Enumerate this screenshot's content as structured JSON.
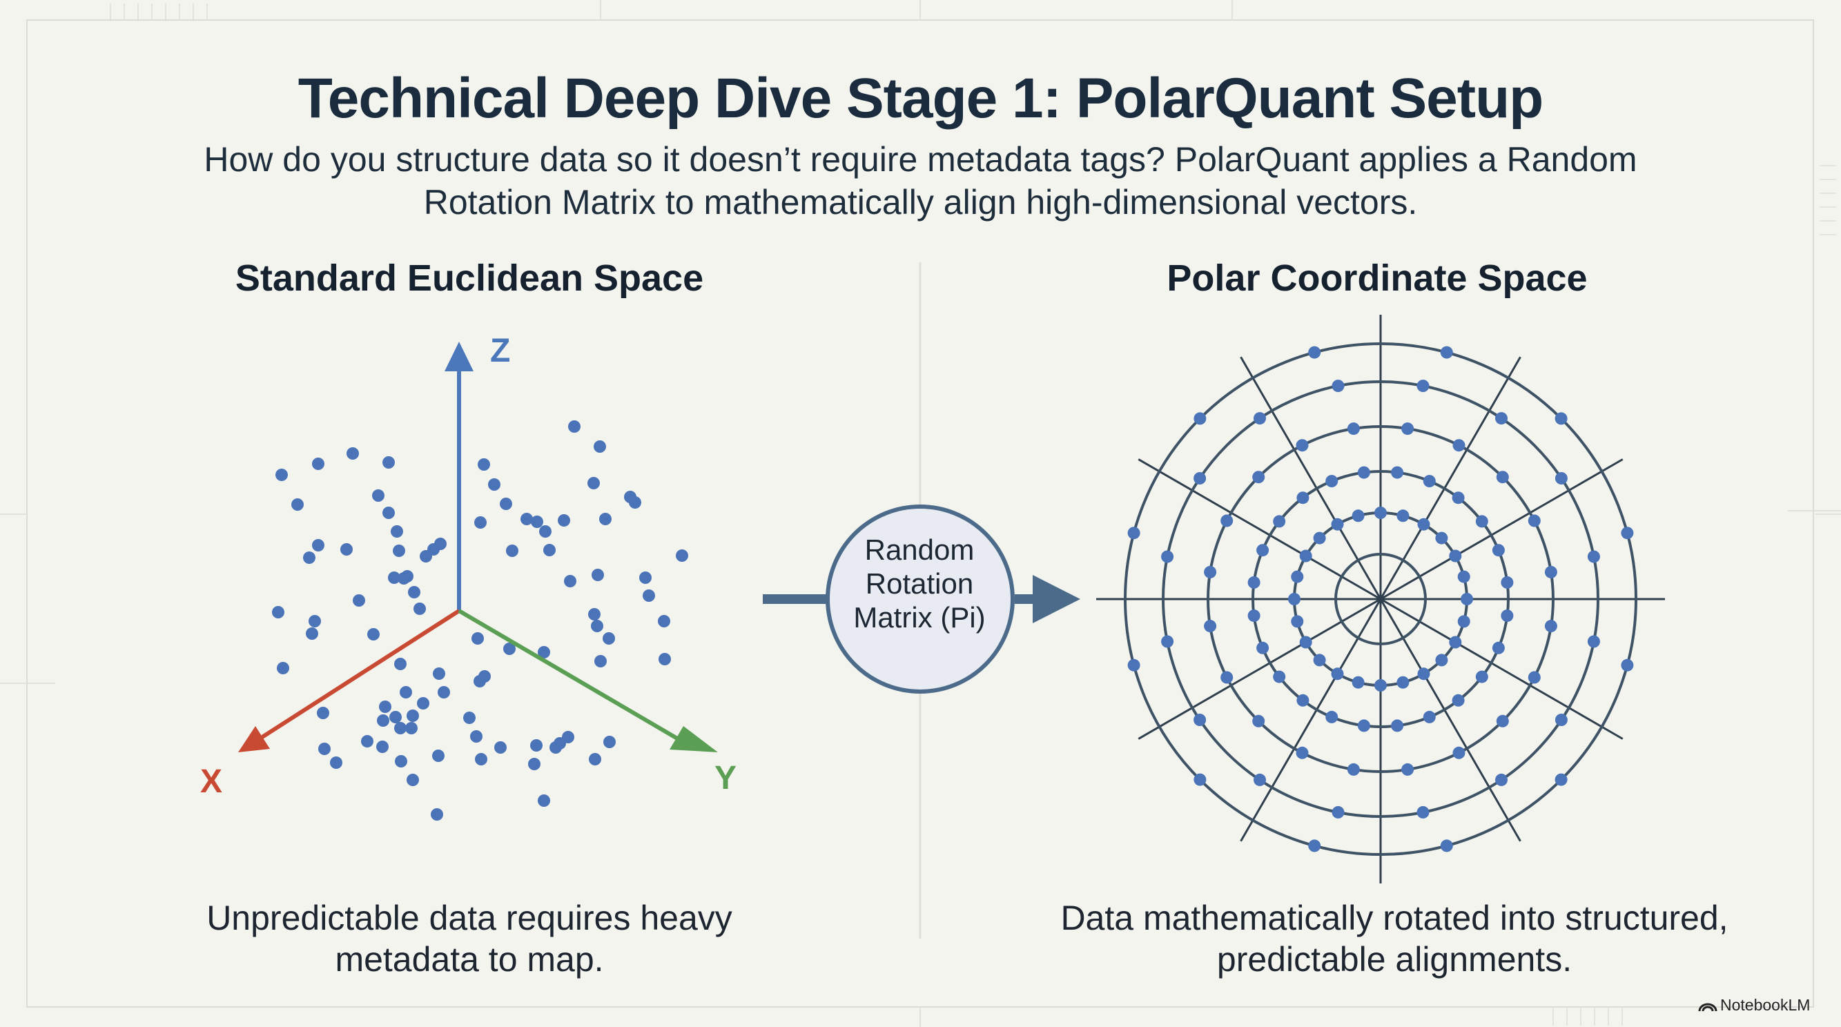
{
  "title": "Technical Deep Dive Stage 1: PolarQuant Setup",
  "subtitle": "How do you structure data so it doesn’t require metadata tags? PolarQuant applies a Random Rotation Matrix to mathematically align high-dimensional vectors.",
  "left_panel": {
    "heading": "Standard Euclidean Space",
    "caption": "Unpredictable data requires heavy metadata to map.",
    "axes": [
      {
        "label": "Z",
        "color": "#4a78bb"
      },
      {
        "label": "X",
        "color": "#c94a33"
      },
      {
        "label": "Y",
        "color": "#5b9f55"
      }
    ]
  },
  "center_node": {
    "label": "Random Rotation Matrix (Pi)",
    "icon": "arrow-right-icon"
  },
  "right_panel": {
    "heading": "Polar Coordinate Space",
    "caption": "Data mathematically rotated into structured, predictable alignments.",
    "rings": 6,
    "spokes": 12
  },
  "colors": {
    "dot": "#4a73b8",
    "grid": "#3f5366",
    "accent_arrow": "#4c6b8a",
    "title": "#1a2c3e"
  },
  "brand": {
    "label": "NotebookLM",
    "icon": "notebooklm-logo-icon"
  }
}
